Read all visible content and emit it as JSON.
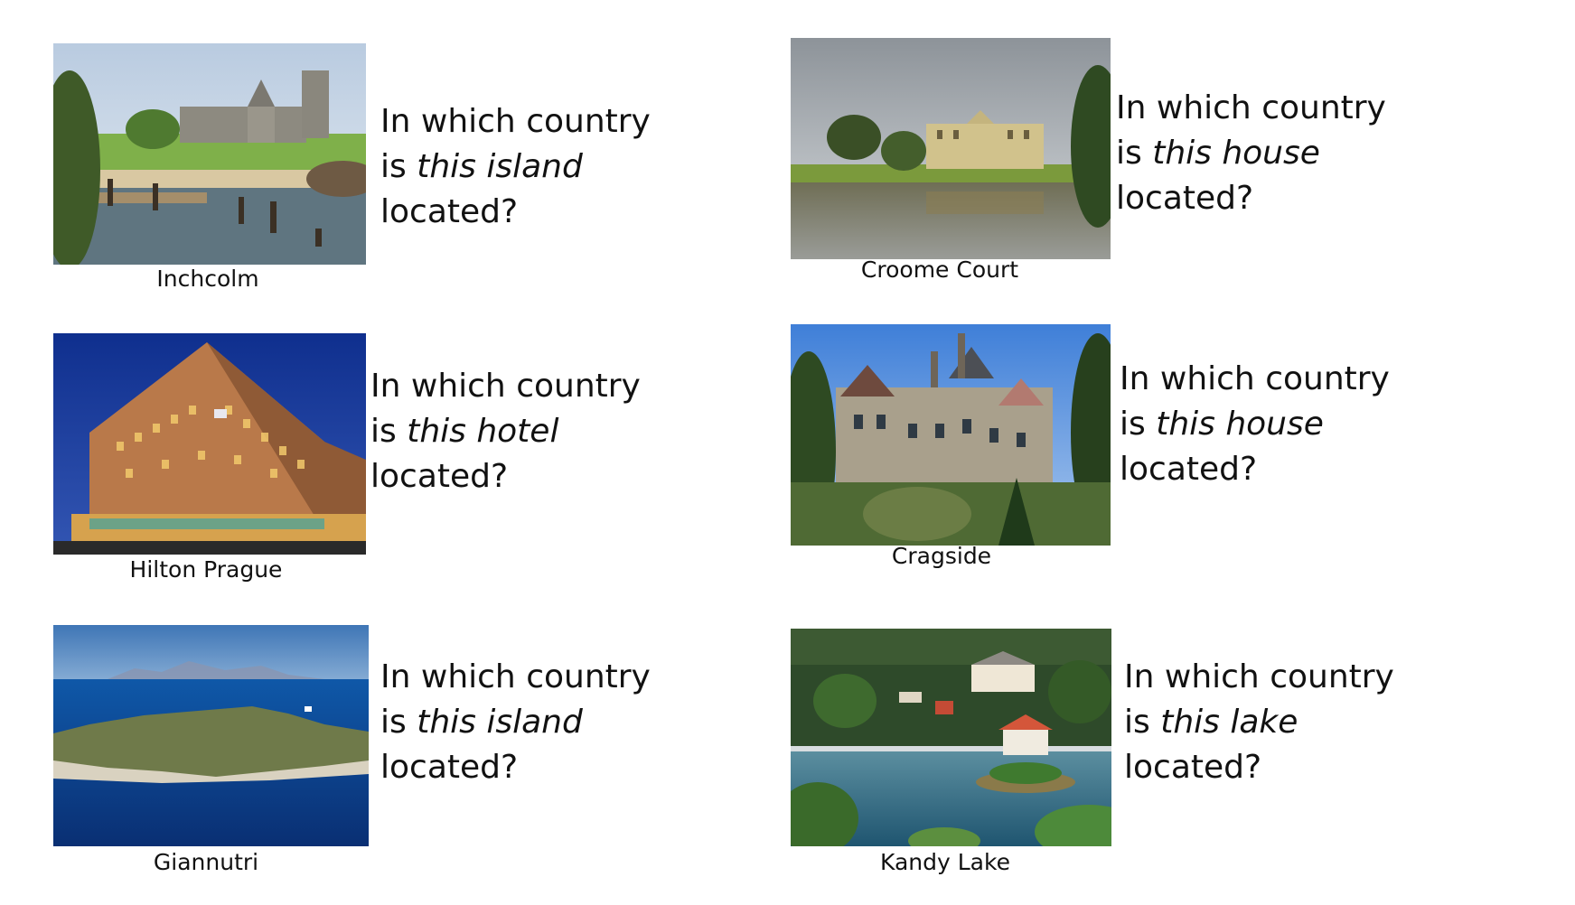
{
  "items": [
    {
      "id": "inchcolm",
      "caption": "Inchcolm",
      "subject_type": "island",
      "q": {
        "line1": "In which country",
        "is": "is ",
        "subject": "this island",
        "line3": "located?"
      }
    },
    {
      "id": "croome-court",
      "caption": "Croome Court",
      "subject_type": "house",
      "q": {
        "line1": "In which country",
        "is": "is ",
        "subject": "this house",
        "line3": "located?"
      }
    },
    {
      "id": "hilton-prague",
      "caption": "Hilton Prague",
      "subject_type": "hotel",
      "q": {
        "line1": "In which country",
        "is": "is ",
        "subject": "this hotel",
        "line3": "located?"
      }
    },
    {
      "id": "cragside",
      "caption": "Cragside",
      "subject_type": "house",
      "q": {
        "line1": "In which country",
        "is": "is ",
        "subject": "this house",
        "line3": "located?"
      }
    },
    {
      "id": "giannutri",
      "caption": "Giannutri",
      "subject_type": "island",
      "q": {
        "line1": "In which country",
        "is": "is ",
        "subject": "this island",
        "line3": "located?"
      }
    },
    {
      "id": "kandy-lake",
      "caption": "Kandy Lake",
      "subject_type": "lake",
      "q": {
        "line1": "In which country",
        "is": "is ",
        "subject": "this lake",
        "line3": "located?"
      }
    }
  ]
}
